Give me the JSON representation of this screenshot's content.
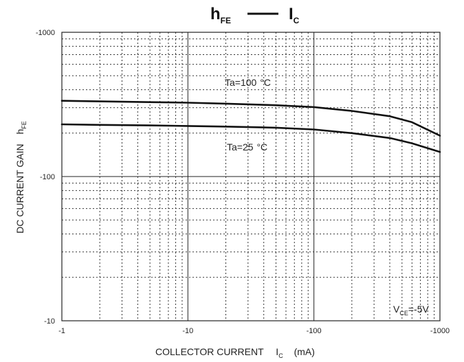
{
  "chart_data": {
    "type": "line",
    "title": {
      "main": "h",
      "main_sub": "FE",
      "rel": "I",
      "rel_sub": "C"
    },
    "xlabel": {
      "text": "COLLECTOR CURRENT",
      "symbol": "I",
      "symbol_sub": "C",
      "unit": "(mA)"
    },
    "ylabel": {
      "text": "DC CURRENT GAIN",
      "symbol": "h",
      "symbol_sub": "FE"
    },
    "x_scale": "log",
    "y_scale": "log",
    "xlim": [
      1,
      1000
    ],
    "ylim": [
      10,
      1000
    ],
    "x_ticks": [
      "-1",
      "-10",
      "-100",
      "-1000"
    ],
    "y_ticks": [
      "-1000",
      "-100",
      "-10"
    ],
    "grid": true,
    "series": [
      {
        "name": "Ta=100 °C",
        "label_text": "Ta=100",
        "label_unit": "°C",
        "x": [
          1,
          2,
          5,
          10,
          20,
          50,
          100,
          200,
          400,
          600,
          1000
        ],
        "y": [
          335,
          332,
          328,
          325,
          320,
          312,
          303,
          285,
          262,
          238,
          192
        ]
      },
      {
        "name": "Ta=25 °C",
        "label_text": "Ta=25",
        "label_unit": "°C",
        "x": [
          1,
          2,
          5,
          10,
          20,
          50,
          100,
          200,
          400,
          600,
          1000
        ],
        "y": [
          230,
          228,
          226,
          224,
          222,
          218,
          212,
          200,
          185,
          170,
          148
        ]
      }
    ],
    "annotation": {
      "prefix": "V",
      "sub": "CE",
      "value": "=-5V"
    }
  }
}
